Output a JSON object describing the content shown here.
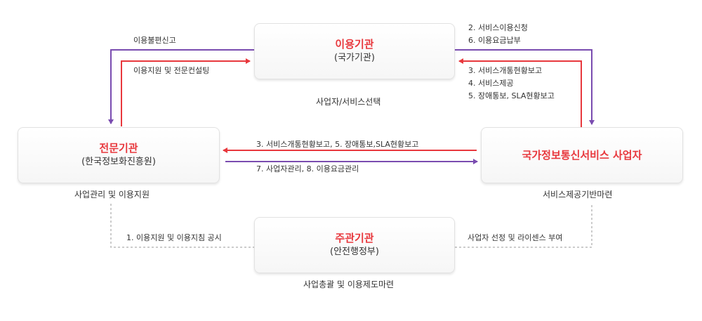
{
  "nodes": {
    "user_agency": {
      "title": "이용기관",
      "subtitle": "(국가기관)"
    },
    "expert_agency": {
      "title": "전문기관",
      "subtitle": "(한국정보화진흥원)"
    },
    "provider": {
      "title": "국가정보통신서비스 사업자"
    },
    "supervisor": {
      "title": "주관기관",
      "subtitle": "(안전행정부)"
    }
  },
  "captions": {
    "user_agency": "사업자/서비스선택",
    "expert_agency": "사업관리 및 이용지원",
    "provider": "서비스제공기반마련",
    "supervisor": "사업총괄 및 이용제도마련"
  },
  "edges": {
    "user_to_expert": "이용불편신고",
    "expert_to_user": "이용지원 및 전문컨설팅",
    "user_to_provider": [
      "2. 서비스이용신청",
      "6. 이용요금납부"
    ],
    "provider_to_user": [
      "3. 서비스개통현황보고",
      "4. 서비스제공",
      "5. 장애통보, SLA현황보고"
    ],
    "provider_to_expert": "3. 서비스개통현황보고, 5. 장애통보,SLA현황보고",
    "expert_to_provider": "7. 사업자관리, 8. 이용요금관리",
    "supervisor_expert": "1. 이용지원 및 이용지침 공시",
    "supervisor_provider": "사업자 선정 및 라이센스 부여"
  },
  "colors": {
    "red": "#e8383d",
    "purple": "#7a4cb0",
    "dotted": "#bbbbbb"
  }
}
